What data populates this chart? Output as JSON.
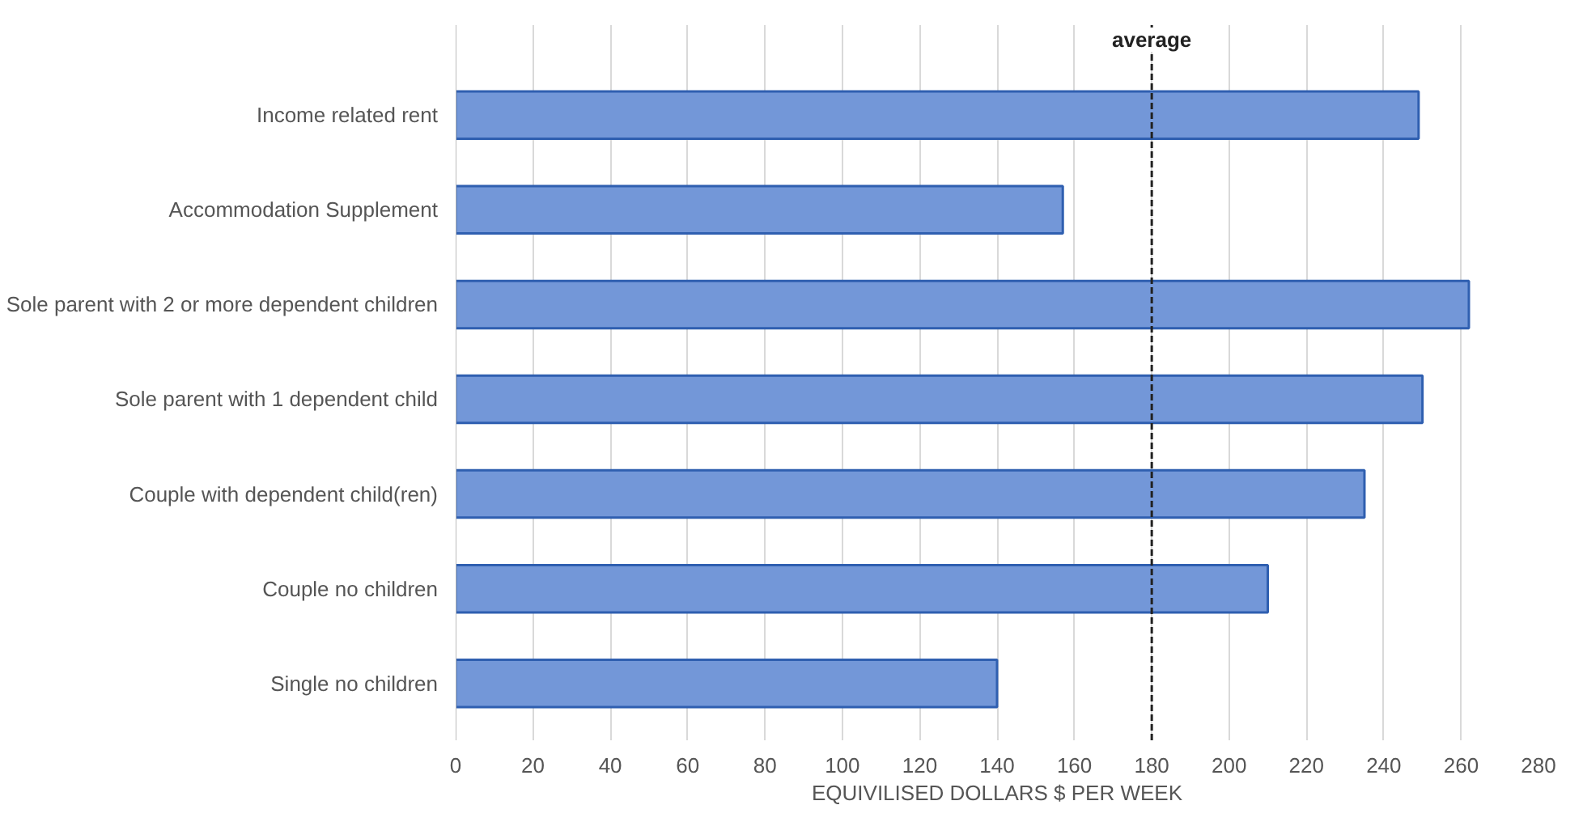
{
  "chart_data": {
    "type": "bar",
    "orientation": "horizontal",
    "xlabel": "EQUIVILISED DOLLARS $ PER WEEK",
    "categories": [
      "Income related rent",
      "Accommodation Supplement",
      "Sole parent with 2 or more dependent children",
      "Sole parent with 1 dependent child",
      "Couple with dependent child(ren)",
      "Couple no children",
      "Single no children"
    ],
    "values": [
      249,
      157,
      262,
      250,
      235,
      210,
      140
    ],
    "color": "#7397d8",
    "xlim": [
      0,
      280
    ],
    "xticks": [
      0,
      20,
      40,
      60,
      80,
      100,
      120,
      140,
      160,
      180,
      200,
      220,
      240,
      260,
      280
    ],
    "grid": "x",
    "ref_lines": [
      {
        "axis": "x",
        "value": 180,
        "label": "average",
        "line_style": "dashed",
        "color": "#222222"
      }
    ]
  }
}
